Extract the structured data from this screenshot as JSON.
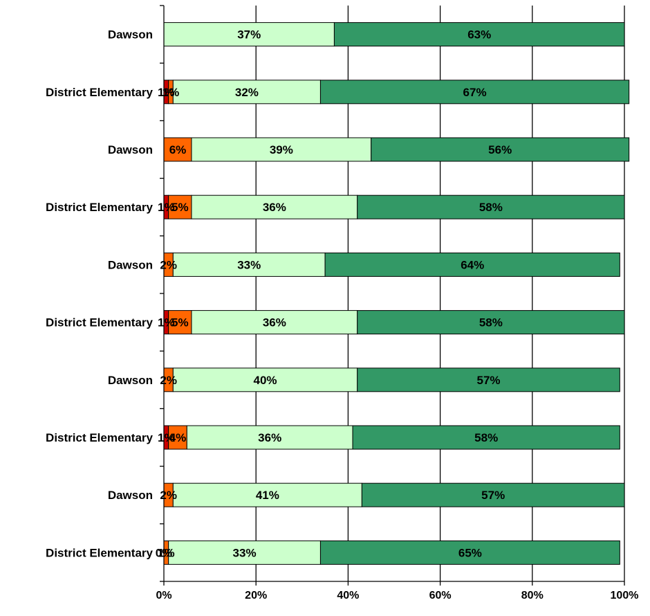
{
  "chart_data": {
    "type": "bar",
    "orientation": "horizontal",
    "stacked": "percent",
    "categories": [
      "Dawson",
      "District Elementary",
      "Dawson",
      "District Elementary",
      "Dawson",
      "District Elementary",
      "Dawson",
      "District Elementary",
      "Dawson",
      "District Elementary"
    ],
    "series": [
      {
        "color": "#cc0000",
        "values": [
          0,
          1,
          0,
          1,
          0,
          1,
          0,
          1,
          0,
          0
        ],
        "labels": [
          "",
          "1%",
          "",
          "1%",
          "",
          "1%",
          "",
          "1%",
          "",
          "0%"
        ]
      },
      {
        "color": "#ff6600",
        "values": [
          0,
          1,
          6,
          5,
          2,
          5,
          2,
          4,
          2,
          1
        ],
        "labels": [
          "",
          "1%",
          "6%",
          "5%",
          "2%",
          "5%",
          "2%",
          "4%",
          "2%",
          "1%"
        ]
      },
      {
        "color": "#ccffcc",
        "values": [
          37,
          32,
          39,
          36,
          33,
          36,
          40,
          36,
          41,
          33
        ],
        "labels": [
          "37%",
          "32%",
          "39%",
          "36%",
          "33%",
          "36%",
          "40%",
          "36%",
          "41%",
          "33%"
        ]
      },
      {
        "color": "#339966",
        "values": [
          63,
          67,
          56,
          58,
          64,
          58,
          57,
          58,
          57,
          65
        ],
        "labels": [
          "63%",
          "67%",
          "56%",
          "58%",
          "64%",
          "58%",
          "57%",
          "58%",
          "57%",
          "65%"
        ]
      }
    ],
    "xlim": [
      0,
      100
    ],
    "xticks": [
      "0%",
      "20%",
      "40%",
      "60%",
      "80%",
      "100%"
    ],
    "grid": "vertical",
    "legend": "none",
    "title": "",
    "xlabel": "",
    "ylabel": ""
  }
}
